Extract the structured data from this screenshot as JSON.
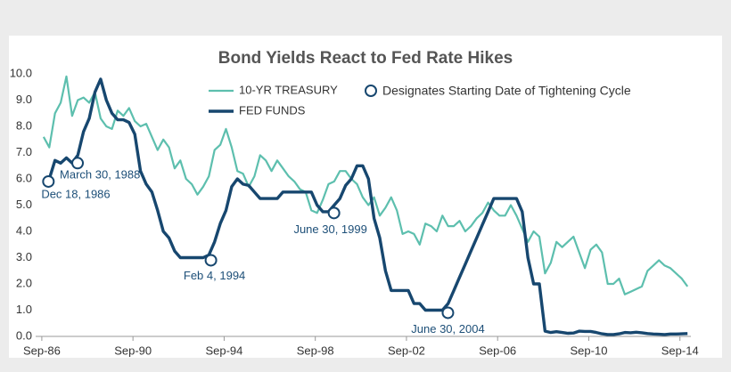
{
  "chart_data": {
    "type": "line",
    "title": "Bond Yields React to Fed Rate Hikes",
    "circle_legend": "Designates Starting Date of Tightening Cycle",
    "x": [
      1986.75,
      1987.0,
      1987.25,
      1987.5,
      1987.75,
      1988.0,
      1988.25,
      1988.5,
      1988.75,
      1989.0,
      1989.25,
      1989.5,
      1989.75,
      1990.0,
      1990.25,
      1990.5,
      1990.75,
      1991.0,
      1991.25,
      1991.5,
      1991.75,
      1992.0,
      1992.25,
      1992.5,
      1992.75,
      1993.0,
      1993.25,
      1993.5,
      1993.75,
      1994.0,
      1994.25,
      1994.5,
      1994.75,
      1995.0,
      1995.25,
      1995.5,
      1995.75,
      1996.0,
      1996.25,
      1996.5,
      1996.75,
      1997.0,
      1997.25,
      1997.5,
      1997.75,
      1998.0,
      1998.25,
      1998.5,
      1998.75,
      1999.0,
      1999.25,
      1999.5,
      1999.75,
      2000.0,
      2000.25,
      2000.5,
      2000.75,
      2001.0,
      2001.25,
      2001.5,
      2001.75,
      2002.0,
      2002.25,
      2002.5,
      2002.75,
      2003.0,
      2003.25,
      2003.5,
      2003.75,
      2004.0,
      2004.25,
      2004.5,
      2004.75,
      2005.0,
      2005.25,
      2005.5,
      2005.75,
      2006.0,
      2006.25,
      2006.5,
      2006.75,
      2007.0,
      2007.25,
      2007.5,
      2007.75,
      2008.0,
      2008.25,
      2008.5,
      2008.75,
      2009.0,
      2009.25,
      2009.5,
      2009.75,
      2010.0,
      2010.25,
      2010.5,
      2010.75,
      2011.0,
      2011.25,
      2011.5,
      2011.75,
      2012.0,
      2012.25,
      2012.5,
      2012.75,
      2013.0,
      2013.25,
      2013.5,
      2013.75,
      2014.0,
      2014.25,
      2014.5,
      2014.75,
      2015.0
    ],
    "series": [
      {
        "name": "10-YR TREASURY",
        "color": "#5dbfae",
        "width": 2.2,
        "values": [
          7.6,
          7.2,
          8.5,
          8.9,
          9.9,
          8.4,
          9.0,
          9.1,
          8.9,
          9.3,
          8.3,
          8.0,
          7.9,
          8.6,
          8.4,
          8.7,
          8.2,
          8.0,
          8.1,
          7.6,
          7.1,
          7.5,
          7.2,
          6.4,
          6.7,
          6.0,
          5.8,
          5.4,
          5.7,
          6.1,
          7.1,
          7.3,
          7.9,
          7.2,
          6.3,
          6.2,
          5.7,
          6.1,
          6.9,
          6.7,
          6.3,
          6.7,
          6.4,
          6.1,
          5.9,
          5.6,
          5.5,
          4.8,
          4.7,
          5.2,
          5.8,
          5.9,
          6.3,
          6.3,
          6.0,
          5.8,
          5.3,
          5.0,
          5.3,
          4.6,
          4.9,
          5.3,
          4.8,
          3.9,
          4.0,
          3.9,
          3.5,
          4.3,
          4.2,
          4.0,
          4.6,
          4.2,
          4.2,
          4.4,
          4.0,
          4.2,
          4.5,
          4.7,
          5.1,
          4.8,
          4.6,
          4.6,
          5.0,
          4.6,
          4.1,
          3.6,
          4.0,
          3.8,
          2.4,
          2.8,
          3.6,
          3.4,
          3.6,
          3.8,
          3.2,
          2.6,
          3.3,
          3.5,
          3.2,
          2.0,
          2.0,
          2.2,
          1.6,
          1.7,
          1.8,
          1.9,
          2.5,
          2.7,
          2.9,
          2.7,
          2.6,
          2.4,
          2.2,
          1.9
        ]
      },
      {
        "name": "FED FUNDS",
        "color": "#17476f",
        "width": 3.4,
        "values": [
          5.9,
          6.0,
          6.7,
          6.6,
          6.8,
          6.6,
          6.9,
          7.8,
          8.3,
          9.3,
          9.8,
          9.0,
          8.5,
          8.25,
          8.25,
          8.15,
          7.7,
          6.3,
          5.8,
          5.5,
          4.8,
          4.0,
          3.75,
          3.25,
          3.0,
          3.0,
          3.0,
          3.0,
          3.0,
          3.1,
          3.6,
          4.3,
          4.8,
          5.7,
          6.0,
          5.8,
          5.75,
          5.5,
          5.25,
          5.25,
          5.25,
          5.25,
          5.5,
          5.5,
          5.5,
          5.5,
          5.5,
          5.5,
          5.0,
          4.75,
          4.75,
          5.0,
          5.25,
          5.75,
          6.0,
          6.5,
          6.5,
          6.0,
          4.5,
          3.75,
          2.5,
          1.75,
          1.75,
          1.75,
          1.75,
          1.25,
          1.25,
          1.0,
          1.0,
          1.0,
          1.0,
          1.25,
          1.75,
          2.25,
          2.75,
          3.25,
          3.75,
          4.25,
          4.75,
          5.25,
          5.25,
          5.25,
          5.25,
          5.25,
          4.75,
          3.0,
          2.0,
          2.0,
          0.2,
          0.15,
          0.18,
          0.15,
          0.12,
          0.13,
          0.2,
          0.19,
          0.19,
          0.15,
          0.1,
          0.07,
          0.07,
          0.1,
          0.15,
          0.14,
          0.16,
          0.14,
          0.11,
          0.09,
          0.08,
          0.07,
          0.09,
          0.09,
          0.1,
          0.11
        ]
      }
    ],
    "annotations": [
      {
        "label": "Dec 18, 1986",
        "x": 1986.96,
        "y": 5.9
      },
      {
        "label": "March 30, 1988",
        "x": 1988.24,
        "y": 6.6
      },
      {
        "label": "Feb 4, 1994",
        "x": 1994.09,
        "y": 2.9
      },
      {
        "label": "June 30, 1999",
        "x": 1999.49,
        "y": 4.7
      },
      {
        "label": "June 30, 2004",
        "x": 2004.49,
        "y": 0.9
      }
    ],
    "annotation_color": "#17476f",
    "xlim": [
      1986.4,
      2015.15
    ],
    "xticks": [
      {
        "value": 1986.67,
        "label": "Sep-86"
      },
      {
        "value": 1990.67,
        "label": "Sep-90"
      },
      {
        "value": 1994.67,
        "label": "Sep-94"
      },
      {
        "value": 1998.67,
        "label": "Sep-98"
      },
      {
        "value": 2002.67,
        "label": "Sep-02"
      },
      {
        "value": 2006.67,
        "label": "Sep-06"
      },
      {
        "value": 2010.67,
        "label": "Sep-10"
      },
      {
        "value": 2014.67,
        "label": "Sep-14"
      }
    ],
    "ylim": [
      0,
      10
    ],
    "yticks": [
      {
        "value": 0,
        "label": "0.0"
      },
      {
        "value": 1,
        "label": "1.0"
      },
      {
        "value": 2,
        "label": "2.0"
      },
      {
        "value": 3,
        "label": "3.0"
      },
      {
        "value": 4,
        "label": "4.0"
      },
      {
        "value": 5,
        "label": "5.0"
      },
      {
        "value": 6,
        "label": "6.0"
      },
      {
        "value": 7,
        "label": "7.0"
      },
      {
        "value": 8,
        "label": "8.0"
      },
      {
        "value": 9,
        "label": "9.0"
      },
      {
        "value": 10,
        "label": "10.0"
      }
    ],
    "grid": false
  }
}
